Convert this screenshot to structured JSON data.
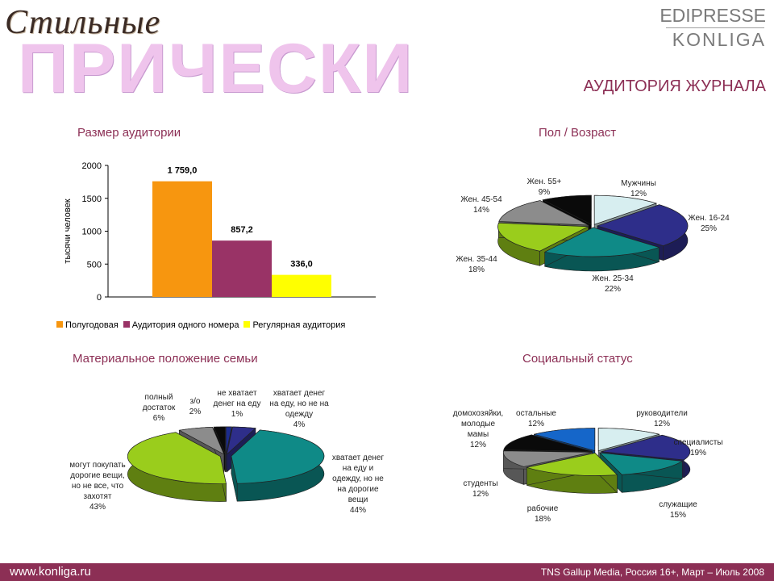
{
  "header": {
    "logo_script": "Стильные",
    "logo_main": "ПРИЧЕСКИ",
    "brand_top": "EDIPRESSE",
    "brand_bottom": "KONLIGA",
    "page_title": "АУДИТОРИЯ ЖУРНАЛА"
  },
  "footer": {
    "url": "www.konliga.ru",
    "source": "TNS Gallup Media, Россия 16+, Март – Июль 2008"
  },
  "colors": {
    "accent": "#8c2f55",
    "logo_pink": "#efc4ec"
  },
  "chart_data": [
    {
      "type": "bar",
      "title": "Размер аудитории",
      "ylabel": "тысячи человек",
      "ylim": [
        0,
        2000
      ],
      "yticks": [
        "0",
        "500",
        "1000",
        "1500",
        "2000"
      ],
      "legend_position": "bottom",
      "series": [
        {
          "name": "Полугодовая",
          "value": 1759.0,
          "label": "1 759,0",
          "color": "#f7960f"
        },
        {
          "name": "Аудитория одного номера",
          "value": 857.2,
          "label": "857,2",
          "color": "#993366"
        },
        {
          "name": "Регулярная аудитория",
          "value": 336.0,
          "label": "336,0",
          "color": "#ffff00"
        }
      ]
    },
    {
      "type": "pie",
      "title": "Пол / Возраст",
      "slices": [
        {
          "label": "Мужчины",
          "pct_label": "12%",
          "value": 12,
          "color": "#d7eef0"
        },
        {
          "label": "Жен. 16-24",
          "pct_label": "25%",
          "value": 25,
          "color": "#2e2e8a"
        },
        {
          "label": "Жен. 25-34",
          "pct_label": "22%",
          "value": 22,
          "color": "#0f8a87"
        },
        {
          "label": "Жен. 35-44",
          "pct_label": "18%",
          "value": 18,
          "color": "#9acd1c"
        },
        {
          "label": "Жен. 45-54",
          "pct_label": "14%",
          "value": 14,
          "color": "#8c8c8c"
        },
        {
          "label": "Жен. 55+",
          "pct_label": "9%",
          "value": 9,
          "color": "#0a0a0a"
        }
      ]
    },
    {
      "type": "pie",
      "title": "Материальное положение семьи",
      "slices": [
        {
          "label": "не хватает денег на еду",
          "pct_label": "1%",
          "value": 1,
          "color": "#1c2c8e"
        },
        {
          "label": "хватает денег на еду, но не на одежду",
          "pct_label": "4%",
          "value": 4,
          "color": "#2e2e8a"
        },
        {
          "label": "хватает денег на еду и одежду, но не на дорогие вещи",
          "pct_label": "44%",
          "value": 44,
          "color": "#0f8a87"
        },
        {
          "label": "могут покупать дорогие вещи, но не все, что захотят",
          "pct_label": "43%",
          "value": 43,
          "color": "#9acd1c"
        },
        {
          "label": "полный достаток",
          "pct_label": "6%",
          "value": 6,
          "color": "#8c8c8c"
        },
        {
          "label": "з/о",
          "pct_label": "2%",
          "value": 2,
          "color": "#0a0a0a"
        }
      ]
    },
    {
      "type": "pie",
      "title": "Социальный статус",
      "slices": [
        {
          "label": "руководители",
          "pct_label": "12%",
          "value": 12,
          "color": "#d7eef0"
        },
        {
          "label": "специалисты",
          "pct_label": "19%",
          "value": 19,
          "color": "#2e2e8a"
        },
        {
          "label": "служащие",
          "pct_label": "15%",
          "value": 15,
          "color": "#0f8a87"
        },
        {
          "label": "рабочие",
          "pct_label": "18%",
          "value": 18,
          "color": "#9acd1c"
        },
        {
          "label": "студенты",
          "pct_label": "12%",
          "value": 12,
          "color": "#8c8c8c"
        },
        {
          "label": "домохозяйки, молодые мамы",
          "pct_label": "12%",
          "value": 12,
          "color": "#0a0a0a"
        },
        {
          "label": "остальные",
          "pct_label": "12%",
          "value": 12,
          "color": "#1566c9"
        }
      ]
    }
  ]
}
